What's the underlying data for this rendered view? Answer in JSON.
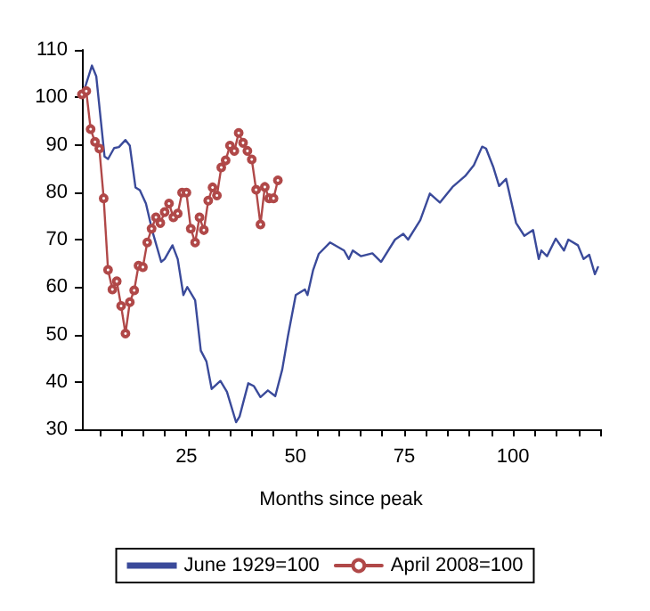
{
  "chart_data": {
    "type": "line",
    "xlabel": "Months since peak",
    "xlim": [
      1,
      120
    ],
    "ylim": [
      30,
      110
    ],
    "xticks": [
      {
        "value": 5,
        "label": null
      },
      {
        "value": 10,
        "label": null
      },
      {
        "value": 15,
        "label": null
      },
      {
        "value": 20,
        "label": null
      },
      25,
      {
        "value": 30,
        "label": null
      },
      {
        "value": 35,
        "label": null
      },
      {
        "value": 40,
        "label": null
      },
      {
        "value": 45,
        "label": null
      },
      50,
      {
        "value": 55,
        "label": null
      },
      {
        "value": 60,
        "label": null
      },
      {
        "value": 65,
        "label": null
      },
      {
        "value": 70,
        "label": null
      },
      75,
      {
        "value": 80,
        "label": null
      },
      {
        "value": 85,
        "label": null
      },
      {
        "value": 90,
        "label": null
      },
      {
        "value": 95,
        "label": null
      },
      100,
      {
        "value": 105,
        "label": null
      },
      {
        "value": 110,
        "label": null
      },
      {
        "value": 115,
        "label": null
      },
      {
        "value": 120,
        "label": null
      }
    ],
    "yticks": [
      30,
      40,
      50,
      60,
      70,
      80,
      90,
      100,
      110
    ],
    "grid": false,
    "legend": "bottom",
    "line_style": "solid",
    "series": [
      {
        "name": "June 1929=100",
        "color": "#3a4a9a",
        "marker": "none",
        "x": [
          1,
          3.3,
          4.3,
          6.2,
          7,
          8.4,
          9.5,
          11,
          12,
          13.3,
          14.3,
          15.7,
          17.2,
          19.2,
          20,
          21.8,
          23,
          24.3,
          25.2,
          27,
          28.3,
          29.6,
          30.8,
          32.8,
          34.3,
          36.4,
          37.2,
          39.2,
          40.5,
          42,
          43.7,
          45.4,
          47,
          48.3,
          50.1,
          52.2,
          52.8,
          54.1,
          55.4,
          58,
          61.2,
          62.3,
          63.2,
          65.1,
          67.7,
          69.7,
          72.9,
          74.8,
          75.9,
          78.7,
          80.9,
          83.2,
          86.1,
          89,
          91,
          92.9,
          93.8,
          95.5,
          96.8,
          98.4,
          100.7,
          102.6,
          104.6,
          105.9,
          106.5,
          107.8,
          109.8,
          111.7,
          112.7,
          114.9,
          116.2,
          117.5,
          118.8,
          119.5
        ],
        "values": [
          100,
          106.7,
          104.4,
          87.5,
          87,
          89.3,
          89.5,
          91,
          89.8,
          81,
          80.4,
          77.6,
          71.7,
          65.3,
          65.9,
          68.8,
          65.9,
          58.3,
          60,
          57.2,
          46.6,
          44.3,
          38.5,
          40.2,
          37.9,
          31.5,
          32.7,
          39.7,
          39.1,
          36.8,
          38.2,
          37,
          42.6,
          49.6,
          58.3,
          59.5,
          58.3,
          63.6,
          67,
          69.4,
          67.7,
          65.9,
          67.7,
          66.5,
          67.1,
          65.3,
          70,
          71.2,
          70,
          74.1,
          79.7,
          77.8,
          81.1,
          83.4,
          85.7,
          89.6,
          89.2,
          85.2,
          81.3,
          82.8,
          73.5,
          70.8,
          72,
          65.9,
          67.7,
          66.5,
          70.2,
          67.7,
          70,
          68.8,
          65.9,
          66.8,
          62.7,
          64.2
        ]
      },
      {
        "name": "April 2008=100",
        "color": "#b04848",
        "marker": "circle",
        "x": [
          1,
          2,
          3,
          4,
          5,
          6,
          7,
          8,
          9,
          10,
          11,
          12,
          13,
          14,
          15,
          16,
          17,
          18,
          19,
          20,
          21,
          22,
          23,
          24,
          25,
          26,
          27,
          28,
          29,
          30,
          31,
          32,
          33,
          34,
          35,
          36,
          37,
          38,
          39,
          40,
          41,
          42,
          43,
          44,
          45,
          46
        ],
        "values": [
          100.6,
          101.3,
          93.3,
          90.6,
          89.2,
          78.7,
          63.6,
          59.5,
          61.2,
          56,
          50.2,
          56.8,
          59.3,
          64.5,
          64.2,
          69.4,
          72.3,
          74.7,
          73.5,
          75.8,
          77.6,
          74.7,
          75.5,
          79.9,
          79.9,
          72.3,
          69.4,
          74.7,
          72,
          78.2,
          81,
          79.3,
          85.2,
          86.7,
          89.8,
          88.7,
          92.5,
          90.4,
          88.7,
          86.9,
          80.5,
          73.2,
          81.1,
          78.7,
          78.7,
          82.5
        ]
      }
    ]
  }
}
